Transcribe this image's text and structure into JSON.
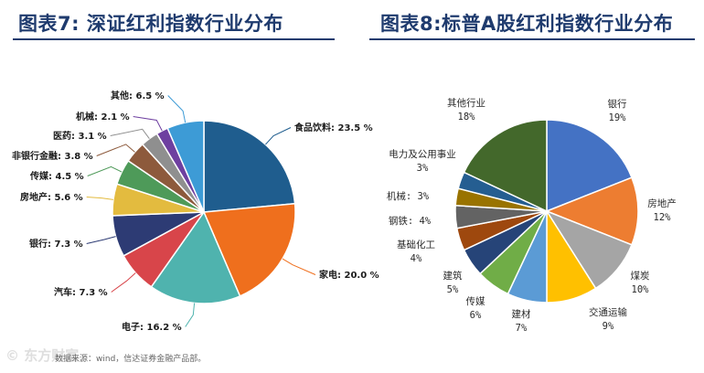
{
  "titles": {
    "left": "图表7: 深证红利指数行业分布",
    "right": "图表8:标普A股红利指数行业分布"
  },
  "source": "数据来源：wind，信达证券金融产品部。",
  "watermark": "© 东方财富",
  "chart_data": [
    {
      "type": "pie",
      "title": "图表7: 深证红利指数行业分布",
      "start_angle_deg": 0,
      "direction": "clockwise",
      "slices": [
        {
          "label": "食品饮料",
          "value": 23.5,
          "text": "食品饮料: 23.5 %",
          "color": "#1f5d8e"
        },
        {
          "label": "家电",
          "value": 20.0,
          "text": "家电: 20.0 %",
          "color": "#ef6f1d"
        },
        {
          "label": "电子",
          "value": 16.2,
          "text": "电子: 16.2 %",
          "color": "#4fb3ae"
        },
        {
          "label": "汽车",
          "value": 7.3,
          "text": "汽车: 7.3 %",
          "color": "#d8454a"
        },
        {
          "label": "银行",
          "value": 7.3,
          "text": "银行: 7.3 %",
          "color": "#2d3b74"
        },
        {
          "label": "房地产",
          "value": 5.6,
          "text": "房地产: 5.6 %",
          "color": "#e3bb3f"
        },
        {
          "label": "传媒",
          "value": 4.5,
          "text": "传媒: 4.5 %",
          "color": "#4e9a59"
        },
        {
          "label": "非银行金融",
          "value": 3.8,
          "text": "非银行金融: 3.8 %",
          "color": "#8d5a3c"
        },
        {
          "label": "医药",
          "value": 3.1,
          "text": "医药: 3.1 %",
          "color": "#8f8f8f"
        },
        {
          "label": "机械",
          "value": 2.1,
          "text": "机械: 2.1 %",
          "color": "#6e3fa0"
        },
        {
          "label": "其他",
          "value": 6.5,
          "text": "其他: 6.5 %",
          "color": "#3d9bd6"
        }
      ]
    },
    {
      "type": "pie",
      "title": "图表8:标普A股红利指数行业分布",
      "start_angle_deg": 0,
      "direction": "clockwise",
      "slices": [
        {
          "label": "银行",
          "value": 19,
          "text": "19%",
          "color": "#4472c4"
        },
        {
          "label": "房地产",
          "value": 12,
          "text": "12%",
          "color": "#ed7d31"
        },
        {
          "label": "煤炭",
          "value": 10,
          "text": "10%",
          "color": "#a5a5a5"
        },
        {
          "label": "交通运输",
          "value": 9,
          "text": "9%",
          "color": "#ffc000"
        },
        {
          "label": "建材",
          "value": 7,
          "text": "7%",
          "color": "#5b9bd5"
        },
        {
          "label": "传媒",
          "value": 6,
          "text": "6%",
          "color": "#70ad47"
        },
        {
          "label": "建筑",
          "value": 5,
          "text": "5%",
          "color": "#264478"
        },
        {
          "label": "基础化工",
          "value": 4,
          "text": "4%",
          "color": "#9e480e"
        },
        {
          "label": "钢铁",
          "value": 4,
          "text": "4%",
          "color": "#636363"
        },
        {
          "label": "机械",
          "value": 3,
          "text": "3%",
          "color": "#997300"
        },
        {
          "label": "电力及公用事业",
          "value": 3,
          "text": "3%",
          "color": "#255e91"
        },
        {
          "label": "其他行业",
          "value": 18,
          "text": "18%",
          "color": "#43682b"
        }
      ]
    }
  ]
}
